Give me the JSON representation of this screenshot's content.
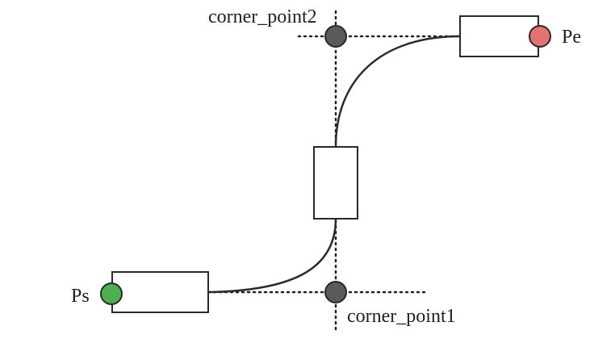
{
  "labels": {
    "start": "Ps",
    "end": "Pe",
    "corner1": "corner_point1",
    "corner2": "corner_point2"
  },
  "colors": {
    "start_point": "#4caf50",
    "end_point": "#e57373",
    "corner_point": "#5a5a5a",
    "stroke": "#2a2a2a"
  }
}
